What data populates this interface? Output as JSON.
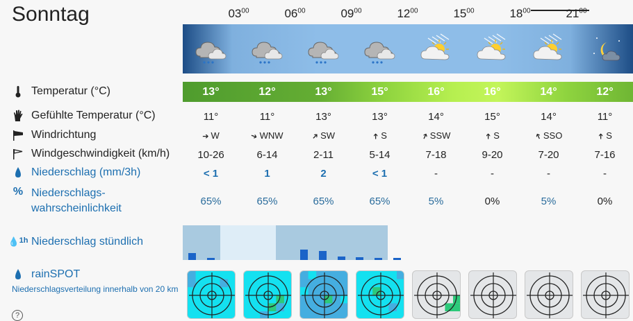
{
  "day": "Sonntag",
  "hours": [
    {
      "h": "03",
      "m": "00"
    },
    {
      "h": "06",
      "m": "00"
    },
    {
      "h": "09",
      "m": "00"
    },
    {
      "h": "12",
      "m": "00"
    },
    {
      "h": "15",
      "m": "00"
    },
    {
      "h": "18",
      "m": "00"
    },
    {
      "h": "21",
      "m": "00"
    }
  ],
  "weather_icons": [
    "night-cloud-rain-icon",
    "cloud-rain-icon",
    "cloud-rain-icon",
    "cloud-rain-icon",
    "sun-cloud-haze-icon",
    "sun-cloud-haze-icon",
    "sun-cloud-haze-icon",
    "moon-cloud-icon"
  ],
  "labels": {
    "temperature": "Temperatur (°C)",
    "feels_like": "Gefühlte Temperatur (°C)",
    "wind_direction": "Windrichtung",
    "wind_speed": "Windgeschwindigkeit (km/h)",
    "precipitation": "Niederschlag (mm/3h)",
    "precip_prob_1": "Niederschlags-",
    "precip_prob_2": "wahrscheinlichkeit",
    "precip_hourly": "Niederschlag stündlich",
    "rainspot": "rainSPOT",
    "rainspot_desc": "Niederschlagsverteilung innerhalb von 20 km",
    "help": "?"
  },
  "temperature": [
    "13°",
    "12°",
    "13°",
    "15°",
    "16°",
    "16°",
    "14°",
    "12°"
  ],
  "feels_like": [
    "11°",
    "11°",
    "13°",
    "13°",
    "14°",
    "15°",
    "14°",
    "11°"
  ],
  "wind_dir": [
    {
      "arrow": "➔",
      "label": "W",
      "rot": 0
    },
    {
      "arrow": "➔",
      "label": "WNW",
      "rot": 20
    },
    {
      "arrow": "➔",
      "label": "SW",
      "rot": -45
    },
    {
      "arrow": "➔",
      "label": "S",
      "rot": -90
    },
    {
      "arrow": "➔",
      "label": "SSW",
      "rot": -65
    },
    {
      "arrow": "➔",
      "label": "S",
      "rot": -90
    },
    {
      "arrow": "➔",
      "label": "SSO",
      "rot": -115
    },
    {
      "arrow": "➔",
      "label": "S",
      "rot": -90
    }
  ],
  "wind_speed": [
    "10-26",
    "6-14",
    "2-11",
    "5-14",
    "7-18",
    "9-20",
    "7-20",
    "7-16"
  ],
  "precipitation": [
    "< 1",
    "1",
    "2",
    "< 1",
    "-",
    "-",
    "-",
    "-"
  ],
  "precip_prob": [
    "65%",
    "65%",
    "65%",
    "65%",
    "5%",
    "0%",
    "5%",
    "0%"
  ],
  "precip_prob_highlight": [
    true,
    true,
    true,
    true,
    true,
    false,
    true,
    false
  ],
  "hourly_bars": [
    0.2,
    0.05,
    0,
    0,
    0,
    0,
    0.3,
    0.27,
    0.1,
    0.08,
    0.05,
    0.05
  ],
  "rainspot_colors": {
    "high": "#14e1f0",
    "mid": "#45aee0",
    "none": "#e4e6e8",
    "green": "#2dc97a"
  }
}
